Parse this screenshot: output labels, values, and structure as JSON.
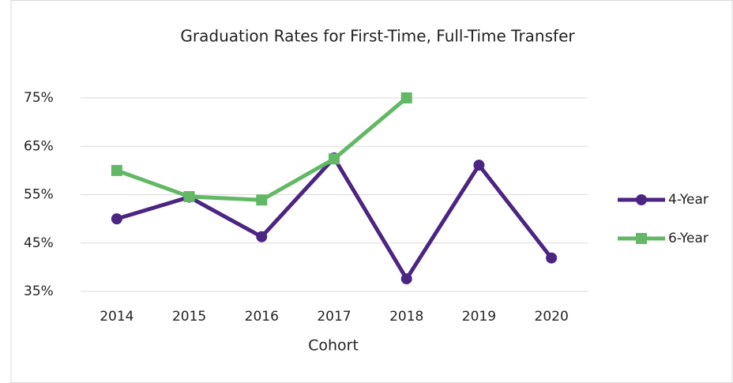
{
  "chart_data": {
    "type": "line",
    "title": "Graduation Rates for First-Time, Full-Time Transfer",
    "x_label": "Cohort",
    "categories": [
      "2014",
      "2015",
      "2016",
      "2017",
      "2018",
      "2019",
      "2020"
    ],
    "series": [
      {
        "name": "4-Year",
        "color": "#4b2582",
        "marker": "circle",
        "values": [
          50,
          54.5,
          46.3,
          62.6,
          37.6,
          61.1,
          41.9
        ]
      },
      {
        "name": "6-Year",
        "color": "#62b865",
        "marker": "square",
        "values": [
          60,
          54.6,
          53.9,
          62.4,
          75,
          null,
          null
        ]
      }
    ],
    "ylim": [
      35,
      75
    ],
    "yticks": [
      {
        "value": 35,
        "label": "35%"
      },
      {
        "value": 45,
        "label": "45%"
      },
      {
        "value": 55,
        "label": "55%"
      },
      {
        "value": 65,
        "label": "65%"
      },
      {
        "value": 75,
        "label": "75%"
      }
    ],
    "grid": true,
    "legend": "right"
  }
}
